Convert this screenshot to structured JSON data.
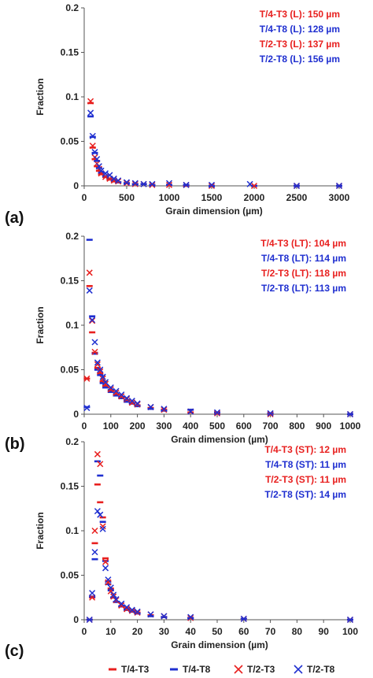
{
  "chart_data": [
    {
      "type": "scatter",
      "panel_label": "(a)",
      "xlabel": "Grain dimension (µm)",
      "ylabel": "Fraction",
      "xlim": [
        0,
        3000
      ],
      "ylim": [
        0,
        0.2
      ],
      "xticks": [
        "0",
        "500",
        "1000",
        "1500",
        "2000",
        "2500",
        "3000"
      ],
      "yticks": [
        "0",
        "0.05",
        "0.1",
        "0.15",
        "0.2"
      ],
      "annotations": [
        {
          "text": "T/4-T3 (L): 150 µm",
          "color": "#e8201f"
        },
        {
          "text": "T/4-T8 (L): 128 µm",
          "color": "#1f2fd0"
        },
        {
          "text": "T/2-T3 (L): 137 µm",
          "color": "#e8201f"
        },
        {
          "text": "T/2-T8 (L): 156 µm",
          "color": "#1f2fd0"
        }
      ],
      "series": [
        {
          "name": "T/4-T3",
          "marker": "dash",
          "color": "#e8201f",
          "x": [
            75,
            100,
            125,
            150,
            175,
            200,
            250,
            300,
            350,
            400,
            500,
            600,
            700,
            800,
            1000,
            1200,
            1500,
            2000,
            2500,
            3000
          ],
          "y": [
            0.093,
            0.043,
            0.03,
            0.022,
            0.017,
            0.013,
            0.01,
            0.007,
            0.005,
            0.004,
            0.003,
            0.002,
            0.002,
            0.001,
            0.001,
            0.0,
            0.0,
            0.0,
            0.0,
            0.0
          ]
        },
        {
          "name": "T/4-T8",
          "marker": "dash",
          "color": "#1f2fd0",
          "x": [
            75,
            100,
            125,
            150,
            175,
            200,
            250,
            300,
            350,
            400,
            500,
            600,
            700,
            800,
            1000,
            1200,
            1500,
            2000,
            2500,
            3000
          ],
          "y": [
            0.078,
            0.055,
            0.037,
            0.028,
            0.02,
            0.015,
            0.011,
            0.008,
            0.006,
            0.004,
            0.003,
            0.002,
            0.002,
            0.001,
            0.001,
            0.001,
            0.0,
            0.0,
            0.0,
            0.0
          ]
        },
        {
          "name": "T/2-T3",
          "marker": "x",
          "color": "#e8201f",
          "x": [
            75,
            100,
            125,
            150,
            175,
            200,
            250,
            300,
            350,
            400,
            500,
            600,
            700,
            800,
            1000,
            1200,
            1500,
            2000,
            2500,
            3000
          ],
          "y": [
            0.095,
            0.045,
            0.032,
            0.025,
            0.019,
            0.014,
            0.01,
            0.008,
            0.006,
            0.005,
            0.003,
            0.002,
            0.002,
            0.001,
            0.001,
            0.001,
            0.0,
            0.0,
            0.0,
            0.0
          ]
        },
        {
          "name": "T/2-T8",
          "marker": "x",
          "color": "#1f2fd0",
          "x": [
            75,
            100,
            125,
            150,
            175,
            200,
            250,
            300,
            350,
            400,
            500,
            600,
            700,
            800,
            1000,
            1200,
            1500,
            1950,
            2500,
            3000
          ],
          "y": [
            0.082,
            0.056,
            0.038,
            0.03,
            0.022,
            0.017,
            0.014,
            0.012,
            0.008,
            0.006,
            0.004,
            0.003,
            0.002,
            0.002,
            0.003,
            0.001,
            0.001,
            0.002,
            0.0,
            0.0
          ]
        }
      ]
    },
    {
      "type": "scatter",
      "panel_label": "(b)",
      "xlabel": "Grain dimension (µm)",
      "ylabel": "Fraction",
      "xlim": [
        0,
        1000
      ],
      "ylim": [
        0,
        0.2
      ],
      "xticks": [
        "0",
        "100",
        "200",
        "300",
        "400",
        "500",
        "600",
        "700",
        "800",
        "900",
        "1000"
      ],
      "yticks": [
        "0",
        "0.05",
        "0.1",
        "0.15",
        "0.2"
      ],
      "annotations": [
        {
          "text": "T/4-T3 (LT): 104 µm",
          "color": "#e8201f"
        },
        {
          "text": "T/4-T8 (LT): 114 µm",
          "color": "#1f2fd0"
        },
        {
          "text": "T/2-T3 (LT): 118 µm",
          "color": "#e8201f"
        },
        {
          "text": "T/2-T8 (LT): 113 µm",
          "color": "#1f2fd0"
        }
      ],
      "series": [
        {
          "name": "T/4-T3",
          "marker": "dash",
          "color": "#e8201f",
          "x": [
            10,
            20,
            30,
            40,
            50,
            60,
            70,
            80,
            100,
            120,
            140,
            160,
            180,
            200,
            250,
            300,
            400,
            500,
            700,
            1000
          ],
          "y": [
            0.04,
            0.144,
            0.092,
            0.069,
            0.052,
            0.046,
            0.037,
            0.032,
            0.027,
            0.022,
            0.019,
            0.016,
            0.012,
            0.01,
            0.007,
            0.005,
            0.002,
            0.001,
            0.0,
            0.0
          ]
        },
        {
          "name": "T/4-T8",
          "marker": "dash",
          "color": "#1f2fd0",
          "x": [
            10,
            20,
            30,
            40,
            50,
            60,
            70,
            80,
            100,
            120,
            140,
            160,
            180,
            200,
            250,
            300,
            400,
            500,
            700,
            1000
          ],
          "y": [
            0.008,
            0.196,
            0.11,
            0.068,
            0.05,
            0.044,
            0.035,
            0.03,
            0.025,
            0.021,
            0.018,
            0.014,
            0.012,
            0.009,
            0.006,
            0.004,
            0.005,
            0.002,
            0.001,
            0.0
          ]
        },
        {
          "name": "T/2-T3",
          "marker": "x",
          "color": "#e8201f",
          "x": [
            10,
            20,
            30,
            40,
            50,
            60,
            70,
            80,
            100,
            120,
            140,
            160,
            180,
            200,
            250,
            300,
            400,
            500,
            700,
            1000
          ],
          "y": [
            0.04,
            0.159,
            0.105,
            0.07,
            0.056,
            0.048,
            0.04,
            0.034,
            0.028,
            0.024,
            0.02,
            0.017,
            0.013,
            0.011,
            0.008,
            0.005,
            0.003,
            0.001,
            0.0,
            0.0
          ]
        },
        {
          "name": "T/2-T8",
          "marker": "x",
          "color": "#1f2fd0",
          "x": [
            10,
            20,
            30,
            40,
            50,
            60,
            70,
            80,
            100,
            120,
            140,
            160,
            180,
            200,
            250,
            300,
            400,
            500,
            700,
            1000
          ],
          "y": [
            0.007,
            0.139,
            0.106,
            0.081,
            0.058,
            0.05,
            0.042,
            0.036,
            0.03,
            0.026,
            0.022,
            0.018,
            0.015,
            0.012,
            0.008,
            0.006,
            0.003,
            0.002,
            0.001,
            0.0
          ]
        }
      ]
    },
    {
      "type": "scatter",
      "panel_label": "(c)",
      "xlabel": "Grain dimension (µm)",
      "ylabel": "Fraction",
      "xlim": [
        0,
        100
      ],
      "ylim": [
        0,
        0.2
      ],
      "xticks": [
        "0",
        "10",
        "20",
        "30",
        "40",
        "50",
        "60",
        "70",
        "80",
        "90",
        "100"
      ],
      "yticks": [
        "0",
        "0.05",
        "0.1",
        "0.15",
        "0.2"
      ],
      "annotations": [
        {
          "text": "T/4-T3 (ST): 12 µm",
          "color": "#e8201f"
        },
        {
          "text": "T/4-T8 (ST): 11 µm",
          "color": "#1f2fd0"
        },
        {
          "text": "T/2-T3 (ST): 11 µm",
          "color": "#e8201f"
        },
        {
          "text": "T/2-T8 (ST): 14 µm",
          "color": "#1f2fd0"
        }
      ],
      "series": [
        {
          "name": "T/4-T3",
          "marker": "dash",
          "color": "#e8201f",
          "x": [
            2,
            3,
            4,
            5,
            6,
            7,
            8,
            9,
            10,
            11,
            12,
            14,
            16,
            18,
            20,
            25,
            30,
            40,
            60,
            100
          ],
          "y": [
            0.0,
            0.025,
            0.086,
            0.152,
            0.132,
            0.115,
            0.069,
            0.043,
            0.035,
            0.025,
            0.02,
            0.015,
            0.012,
            0.01,
            0.008,
            0.005,
            0.003,
            0.002,
            0.001,
            0.0
          ]
        },
        {
          "name": "T/4-T8",
          "marker": "dash",
          "color": "#1f2fd0",
          "x": [
            2,
            3,
            4,
            5,
            6,
            7,
            8,
            9,
            10,
            11,
            12,
            14,
            16,
            18,
            20,
            25,
            30,
            40,
            60,
            100
          ],
          "y": [
            0.0,
            0.026,
            0.068,
            0.178,
            0.162,
            0.11,
            0.066,
            0.04,
            0.033,
            0.025,
            0.02,
            0.015,
            0.011,
            0.009,
            0.007,
            0.004,
            0.003,
            0.002,
            0.001,
            0.0
          ]
        },
        {
          "name": "T/2-T3",
          "marker": "x",
          "color": "#e8201f",
          "x": [
            2,
            3,
            4,
            5,
            6,
            7,
            8,
            9,
            10,
            11,
            12,
            14,
            16,
            18,
            20,
            25,
            30,
            40,
            60,
            100
          ],
          "y": [
            0.0,
            0.025,
            0.1,
            0.186,
            0.175,
            0.105,
            0.065,
            0.042,
            0.032,
            0.026,
            0.022,
            0.016,
            0.012,
            0.01,
            0.008,
            0.006,
            0.004,
            0.002,
            0.001,
            0.0
          ]
        },
        {
          "name": "T/2-T8",
          "marker": "x",
          "color": "#1f2fd0",
          "x": [
            2,
            3,
            4,
            5,
            6,
            7,
            8,
            9,
            10,
            11,
            12,
            14,
            16,
            18,
            20,
            25,
            30,
            40,
            60,
            100
          ],
          "y": [
            0.0,
            0.03,
            0.076,
            0.122,
            0.118,
            0.102,
            0.058,
            0.045,
            0.036,
            0.028,
            0.023,
            0.018,
            0.014,
            0.011,
            0.009,
            0.006,
            0.004,
            0.003,
            0.001,
            0.0
          ]
        }
      ]
    }
  ],
  "legend": {
    "placement": "bottom",
    "items": [
      {
        "label": "T/4-T3",
        "marker": "dash",
        "color": "#e8201f"
      },
      {
        "label": "T/4-T8",
        "marker": "dash",
        "color": "#1f2fd0"
      },
      {
        "label": "T/2-T3",
        "marker": "x",
        "color": "#e8201f"
      },
      {
        "label": "T/2-T8",
        "marker": "x",
        "color": "#1f2fd0"
      }
    ]
  }
}
